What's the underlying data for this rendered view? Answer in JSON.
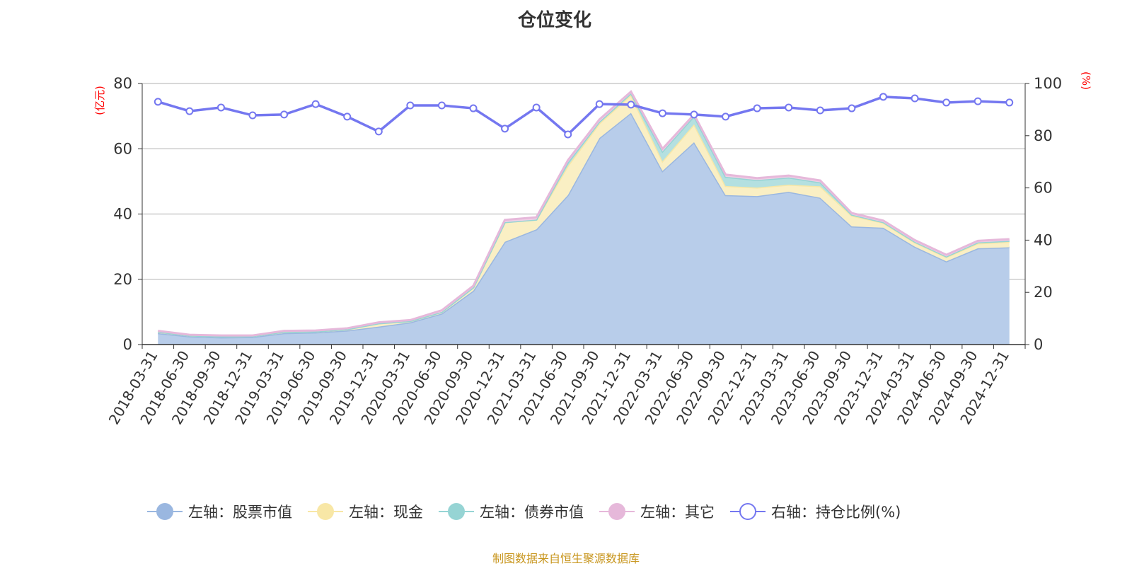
{
  "chart_data": {
    "type": "area",
    "title": "仓位变化",
    "left_axis": {
      "unit_label": "(亿元)",
      "ylim": [
        0,
        80
      ],
      "ticks": [
        "0",
        "20",
        "40",
        "60",
        "80"
      ]
    },
    "right_axis": {
      "unit_label": "(%)",
      "ylim": [
        0,
        100
      ],
      "ticks": [
        "0",
        "20",
        "40",
        "60",
        "80",
        "100"
      ]
    },
    "grid": true,
    "legend_placement": "bottom",
    "categories": [
      "2018-03-31",
      "2018-06-30",
      "2018-09-30",
      "2018-12-31",
      "2019-03-31",
      "2019-06-30",
      "2019-09-30",
      "2019-12-31",
      "2020-03-31",
      "2020-06-30",
      "2020-09-30",
      "2020-12-31",
      "2021-03-31",
      "2021-06-30",
      "2021-09-30",
      "2021-12-31",
      "2022-03-31",
      "2022-06-30",
      "2022-09-30",
      "2022-12-31",
      "2023-03-31",
      "2023-06-30",
      "2023-09-30",
      "2023-12-31",
      "2024-03-31",
      "2024-06-30",
      "2024-09-30",
      "2024-12-31"
    ],
    "series": [
      {
        "name": "左轴：股票市值",
        "axis": "left",
        "stacked": true,
        "color": "#9ab7e0",
        "fill": "#b8cdea",
        "values": [
          3.5,
          2.5,
          2.2,
          2.3,
          3.5,
          3.7,
          4.3,
          5.5,
          6.8,
          9.5,
          16.5,
          31.5,
          35.3,
          45.8,
          63.3,
          71.0,
          53.2,
          62.0,
          45.8,
          45.5,
          46.8,
          45.0,
          36.2,
          35.8,
          30.0,
          25.5,
          29.5,
          29.8
        ]
      },
      {
        "name": "左轴：现金",
        "axis": "left",
        "stacked": true,
        "color": "#f8e7a6",
        "fill": "#faefc4",
        "values": [
          0.4,
          0.3,
          0.3,
          0.3,
          0.4,
          0.3,
          0.4,
          1.0,
          0.4,
          0.5,
          1.0,
          6.0,
          3.0,
          9.0,
          4.5,
          5.5,
          3.0,
          5.5,
          2.8,
          2.6,
          2.2,
          3.5,
          3.3,
          1.5,
          1.3,
          1.3,
          1.5,
          1.7
        ]
      },
      {
        "name": "左轴：债券市值",
        "axis": "left",
        "stacked": true,
        "color": "#96d4d4",
        "fill": "#b4e0e0",
        "values": [
          0,
          0,
          0,
          0,
          0,
          0,
          0,
          0,
          0,
          0,
          0,
          0,
          0,
          1.0,
          0.5,
          0.5,
          3.0,
          2.5,
          2.8,
          2.3,
          2.2,
          1.2,
          0.3,
          0.2,
          0.2,
          0.2,
          0.3,
          0.3
        ]
      },
      {
        "name": "左轴：其它",
        "axis": "left",
        "stacked": true,
        "color": "#e6b8da",
        "fill": "#efd0e6",
        "values": [
          0.3,
          0.2,
          0.3,
          0.2,
          0.3,
          0.3,
          0.3,
          0.3,
          0.3,
          0.5,
          0.5,
          0.7,
          0.7,
          0.7,
          0.7,
          0.5,
          0.8,
          0.5,
          0.7,
          0.6,
          0.6,
          0.6,
          0.5,
          0.5,
          0.5,
          0.5,
          0.5,
          0.5
        ]
      },
      {
        "name": "右轴：持仓比例(%)",
        "axis": "right",
        "stacked": false,
        "color": "#7477f0",
        "values": [
          93.0,
          89.4,
          90.8,
          87.8,
          88.1,
          92.1,
          87.3,
          81.6,
          91.6,
          91.6,
          90.5,
          82.7,
          90.8,
          80.5,
          92.1,
          91.9,
          88.6,
          88.1,
          87.3,
          90.5,
          90.8,
          89.7,
          90.5,
          94.9,
          94.3,
          92.7,
          93.2,
          92.7
        ]
      }
    ]
  },
  "source": "制图数据来自恒生聚源数据库"
}
